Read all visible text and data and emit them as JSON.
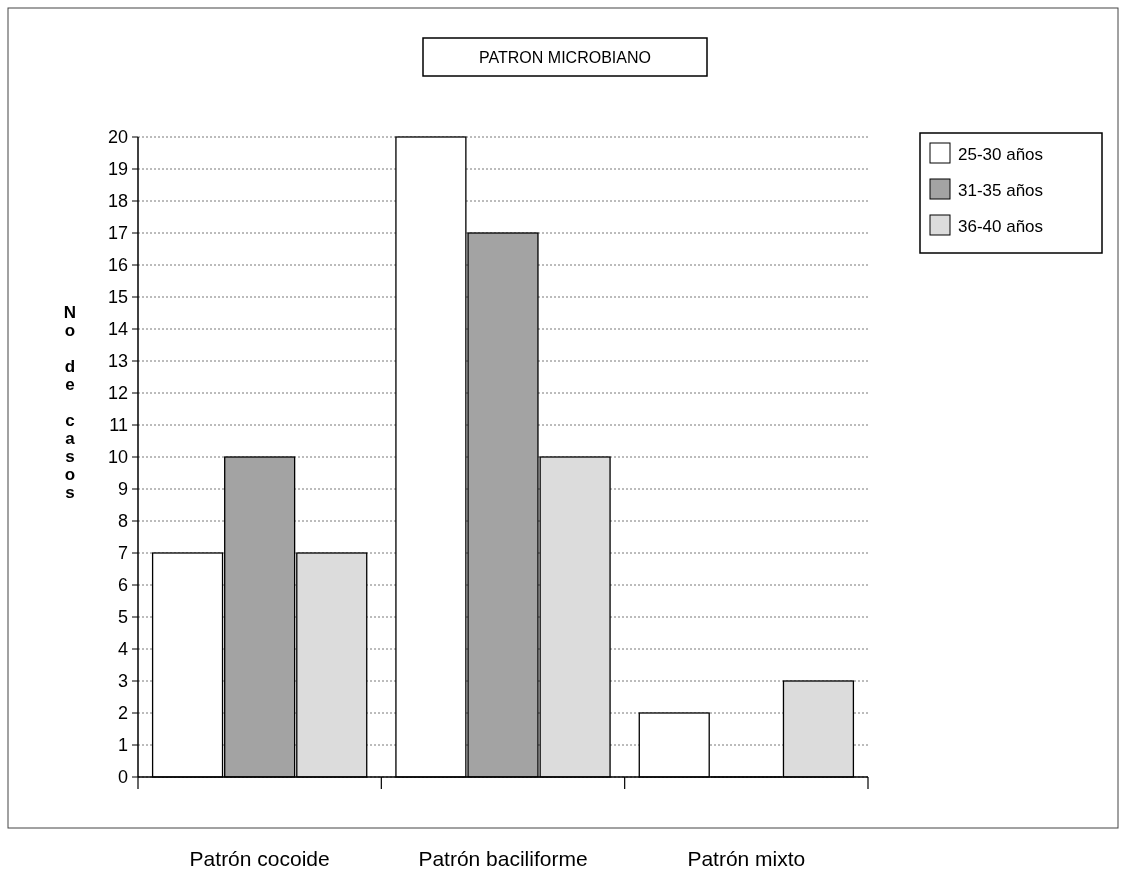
{
  "chart_data": {
    "type": "bar",
    "title": "PATRON MICROBIANO",
    "ylabel": "No de casos",
    "categories": [
      "Patrón cocoide",
      "Patrón baciliforme",
      "Patrón mixto"
    ],
    "series": [
      {
        "name": "25-30 años",
        "color": "#ffffff",
        "values": [
          7,
          20,
          2
        ]
      },
      {
        "name": "31-35 años",
        "color": "#a3a3a3",
        "values": [
          10,
          17,
          0
        ]
      },
      {
        "name": "36-40 años",
        "color": "#dcdcdc",
        "values": [
          7,
          10,
          3
        ]
      }
    ],
    "ylim": [
      0,
      20
    ],
    "yticks": [
      0,
      1,
      2,
      3,
      4,
      5,
      6,
      7,
      8,
      9,
      10,
      11,
      12,
      13,
      14,
      15,
      16,
      17,
      18,
      19,
      20
    ],
    "grid": "y",
    "legend": "top right"
  }
}
